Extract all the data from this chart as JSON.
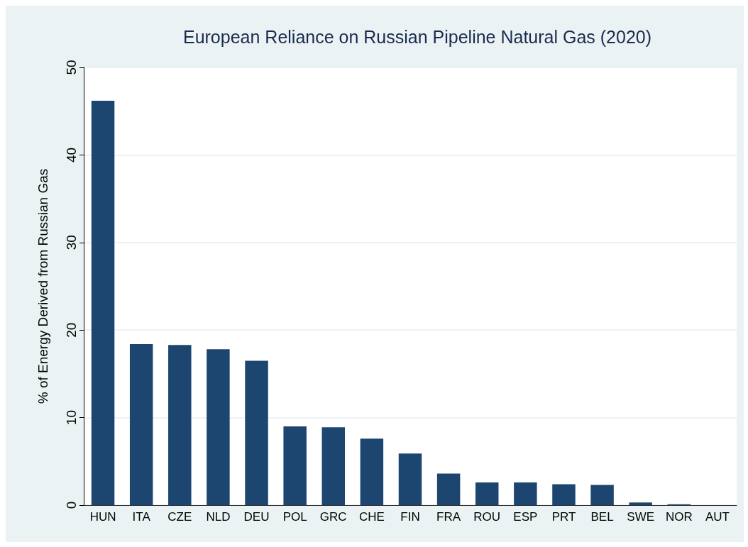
{
  "chart_data": {
    "type": "bar",
    "title": "European Reliance on Russian Pipeline Natural Gas (2020)",
    "ylabel": "% of Energy Derived from Russian Gas",
    "categories": [
      "HUN",
      "ITA",
      "CZE",
      "NLD",
      "DEU",
      "POL",
      "GRC",
      "CHE",
      "FIN",
      "FRA",
      "ROU",
      "ESP",
      "PRT",
      "BEL",
      "SWE",
      "NOR",
      "AUT"
    ],
    "values": [
      46.2,
      18.4,
      18.3,
      17.8,
      16.5,
      9.0,
      8.9,
      7.6,
      5.9,
      3.6,
      2.6,
      2.6,
      2.4,
      2.3,
      0.3,
      0.1,
      0
    ],
    "color": "#1c4670",
    "ylim": [
      0,
      50
    ],
    "yticks": [
      0,
      10,
      20,
      30,
      40,
      50
    ],
    "grid": "y"
  }
}
